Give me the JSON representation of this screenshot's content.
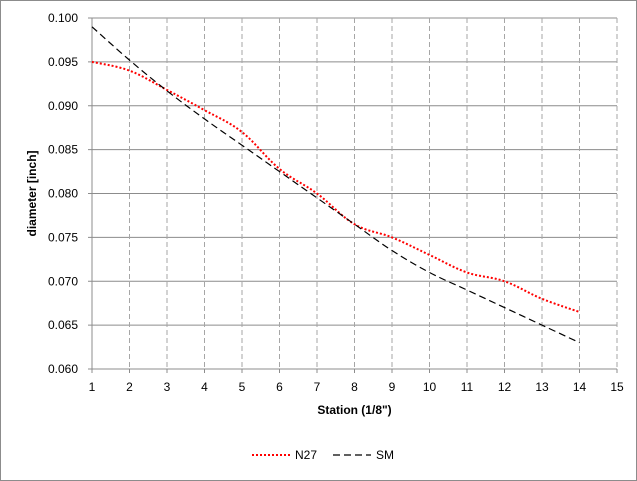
{
  "chart_data": {
    "type": "line",
    "title": "",
    "xlabel": "Station (1/8\")",
    "ylabel": "diameter [inch]",
    "xlim": [
      1,
      15
    ],
    "ylim": [
      0.06,
      0.1
    ],
    "x_ticks": [
      "1",
      "2",
      "3",
      "4",
      "5",
      "6",
      "7",
      "8",
      "9",
      "10",
      "11",
      "12",
      "13",
      "14",
      "15"
    ],
    "y_ticks": [
      "0.060",
      "0.065",
      "0.070",
      "0.075",
      "0.080",
      "0.085",
      "0.090",
      "0.095",
      "0.100"
    ],
    "grid": {
      "horizontal": "solid",
      "vertical": "dashed"
    },
    "legend_position": "bottom",
    "series": [
      {
        "name": "N27",
        "color": "#ff0000",
        "style": "dotted",
        "x": [
          1,
          2,
          3,
          4,
          5,
          6,
          7,
          8,
          9,
          10,
          11,
          12,
          13,
          14
        ],
        "values": [
          0.095,
          0.094,
          0.0918,
          0.0895,
          0.087,
          0.0828,
          0.08,
          0.0765,
          0.075,
          0.073,
          0.071,
          0.07,
          0.068,
          0.0665
        ]
      },
      {
        "name": "SM",
        "color": "#000000",
        "style": "dashed",
        "x": [
          1,
          2,
          3,
          4,
          5,
          6,
          7,
          8,
          9,
          10,
          11,
          12,
          13,
          14
        ],
        "values": [
          0.099,
          0.0952,
          0.0917,
          0.0885,
          0.0855,
          0.0825,
          0.0795,
          0.0765,
          0.0735,
          0.071,
          0.069,
          0.067,
          0.065,
          0.063
        ]
      }
    ]
  }
}
